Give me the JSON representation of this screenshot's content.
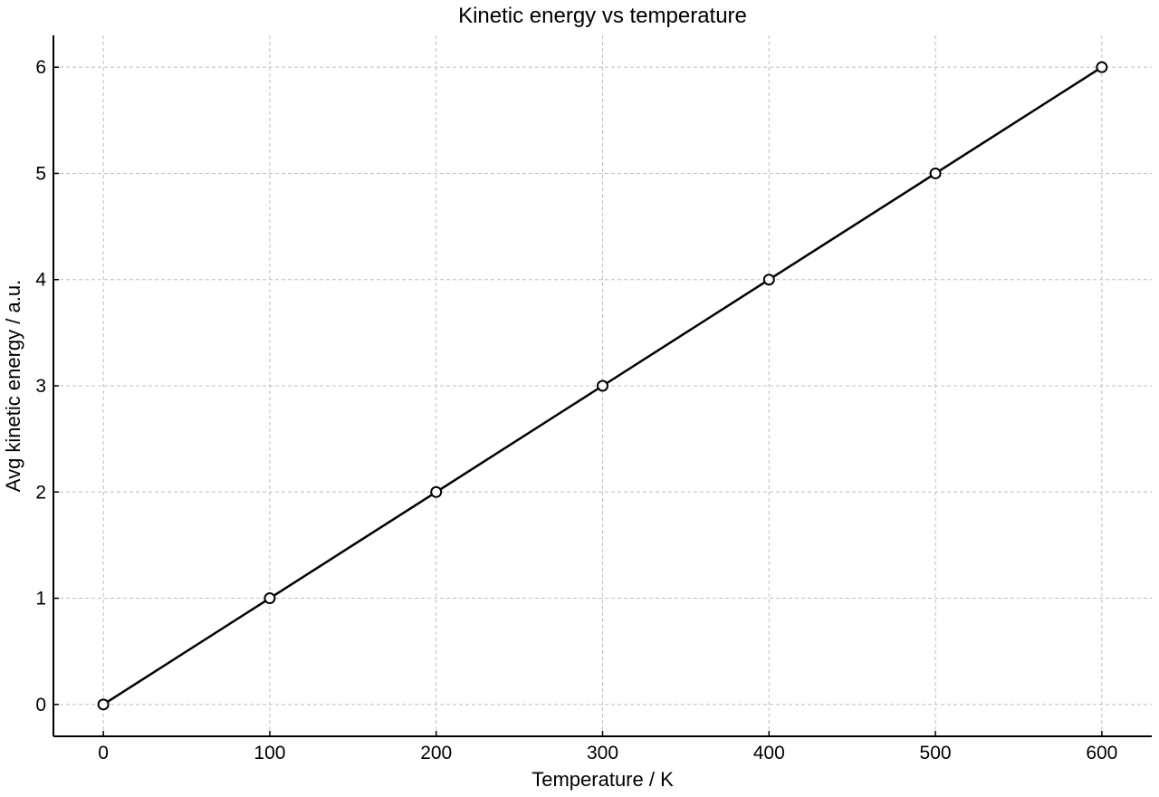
{
  "chart_data": {
    "type": "line",
    "title": "Kinetic energy vs temperature",
    "xlabel": "Temperature / K",
    "ylabel": "Avg kinetic energy / a.u.",
    "xlim": [
      -30,
      630
    ],
    "ylim": [
      -0.3,
      6.3
    ],
    "x_ticks": [
      0,
      100,
      200,
      300,
      400,
      500,
      600
    ],
    "y_ticks": [
      0,
      1,
      2,
      3,
      4,
      5,
      6
    ],
    "grid": true,
    "legend": "none",
    "series": [
      {
        "x": [
          0,
          100,
          200,
          300,
          400,
          500,
          600
        ],
        "y": [
          0,
          1,
          2,
          3,
          4,
          5,
          6
        ],
        "color": "#000000",
        "marker": "open-circle"
      }
    ]
  }
}
